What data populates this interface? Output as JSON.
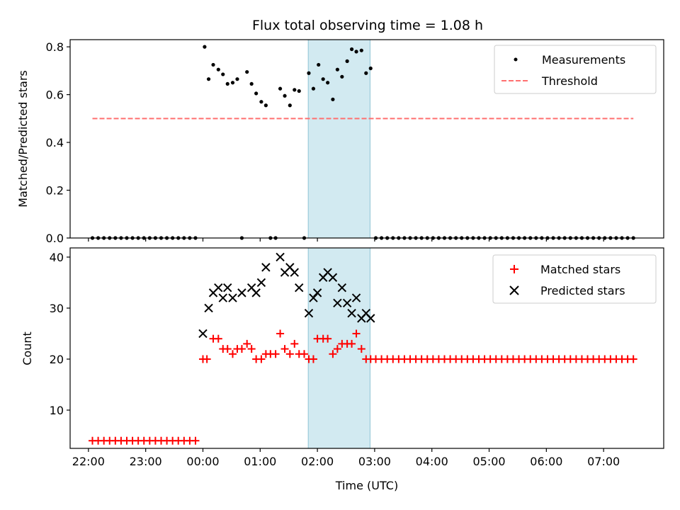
{
  "chart_data": {
    "title": "Flux total observing time = 1.08 h",
    "xlabel": "Time (UTC)",
    "x_unit": "hours since 22:00 UTC",
    "x_range": [
      -0.32,
      10.05
    ],
    "x_ticks": [
      {
        "label": "22:00",
        "value": 0
      },
      {
        "label": "23:00",
        "value": 1
      },
      {
        "label": "00:00",
        "value": 2
      },
      {
        "label": "01:00",
        "value": 3
      },
      {
        "label": "02:00",
        "value": 4
      },
      {
        "label": "03:00",
        "value": 5
      },
      {
        "label": "04:00",
        "value": 6
      },
      {
        "label": "05:00",
        "value": 7
      },
      {
        "label": "06:00",
        "value": 8
      },
      {
        "label": "07:00",
        "value": 9
      }
    ],
    "highlight": {
      "x0": 3.84,
      "x1": 4.92,
      "color": "#add8e6"
    },
    "panels": [
      {
        "type": "scatter",
        "ylabel": "Matched/Predicted stars",
        "ylim": [
          0,
          0.83
        ],
        "y_ticks": [
          0.0,
          0.2,
          0.4,
          0.6,
          0.8
        ],
        "legend_position": "upper right",
        "series": [
          {
            "name": "Measurements",
            "marker": "dot",
            "color": "#000000",
            "x": [
              0.07,
              0.17,
              0.27,
              0.37,
              0.47,
              0.57,
              0.67,
              0.77,
              0.87,
              0.97,
              1.07,
              1.17,
              1.27,
              1.37,
              1.47,
              1.57,
              1.67,
              1.77,
              1.87,
              2.03,
              2.1,
              2.18,
              2.27,
              2.35,
              2.43,
              2.52,
              2.6,
              2.68,
              2.77,
              2.85,
              2.93,
              3.02,
              3.1,
              3.18,
              3.27,
              3.35,
              3.43,
              3.52,
              3.6,
              3.68,
              3.77,
              3.85,
              3.93,
              4.02,
              4.1,
              4.18,
              4.27,
              4.35,
              4.43,
              4.52,
              4.6,
              4.68,
              4.77,
              4.85,
              4.93,
              5.02,
              5.12,
              5.22,
              5.32,
              5.42,
              5.52,
              5.62,
              5.72,
              5.82,
              5.92,
              6.02,
              6.12,
              6.22,
              6.32,
              6.42,
              6.52,
              6.62,
              6.72,
              6.82,
              6.92,
              7.02,
              7.12,
              7.22,
              7.32,
              7.42,
              7.52,
              7.62,
              7.72,
              7.82,
              7.92,
              8.02,
              8.12,
              8.22,
              8.32,
              8.42,
              8.52,
              8.62,
              8.72,
              8.82,
              8.92,
              9.02,
              9.12,
              9.22,
              9.32,
              9.42,
              9.52
            ],
            "y": [
              0,
              0,
              0,
              0,
              0,
              0,
              0,
              0,
              0,
              0,
              0,
              0,
              0,
              0,
              0,
              0,
              0,
              0,
              0,
              0.8,
              0.665,
              0.725,
              0.705,
              0.685,
              0.645,
              0.65,
              0.665,
              0,
              0.695,
              0.645,
              0.605,
              0.57,
              0.555,
              0,
              0,
              0.625,
              0.595,
              0.555,
              0.62,
              0.615,
              0,
              0.69,
              0.625,
              0.725,
              0.665,
              0.65,
              0.58,
              0.705,
              0.675,
              0.74,
              0.79,
              0.78,
              0.785,
              0.69,
              0.71,
              0,
              0,
              0,
              0,
              0,
              0,
              0,
              0,
              0,
              0,
              0,
              0,
              0,
              0,
              0,
              0,
              0,
              0,
              0,
              0,
              0,
              0,
              0,
              0,
              0,
              0,
              0,
              0,
              0,
              0,
              0,
              0,
              0,
              0,
              0,
              0,
              0,
              0,
              0,
              0,
              0,
              0,
              0,
              0,
              0,
              0
            ]
          },
          {
            "name": "Threshold",
            "marker": "dashed-line",
            "color": "#ff7070",
            "x": [
              0.07,
              9.52
            ],
            "y": [
              0.5,
              0.5
            ]
          }
        ]
      },
      {
        "type": "scatter",
        "ylabel": "Count",
        "ylim": [
          2.5,
          41.8
        ],
        "y_ticks": [
          10,
          20,
          30,
          40
        ],
        "legend_position": "upper right",
        "series": [
          {
            "name": "Matched stars",
            "marker": "plus",
            "color": "#ff0000",
            "x": [
              0.07,
              0.17,
              0.27,
              0.37,
              0.47,
              0.57,
              0.67,
              0.77,
              0.87,
              0.97,
              1.07,
              1.17,
              1.27,
              1.37,
              1.47,
              1.57,
              1.67,
              1.77,
              1.87,
              2.0,
              2.07,
              2.18,
              2.27,
              2.35,
              2.43,
              2.52,
              2.6,
              2.68,
              2.77,
              2.85,
              2.93,
              3.02,
              3.1,
              3.18,
              3.27,
              3.35,
              3.43,
              3.52,
              3.6,
              3.68,
              3.77,
              3.85,
              3.93,
              4.0,
              4.1,
              4.18,
              4.27,
              4.35,
              4.43,
              4.52,
              4.6,
              4.68,
              4.77,
              4.85,
              4.93,
              5.02,
              5.12,
              5.22,
              5.32,
              5.42,
              5.52,
              5.62,
              5.72,
              5.82,
              5.92,
              6.02,
              6.12,
              6.22,
              6.32,
              6.42,
              6.52,
              6.62,
              6.72,
              6.82,
              6.92,
              7.02,
              7.12,
              7.22,
              7.32,
              7.42,
              7.52,
              7.62,
              7.72,
              7.82,
              7.92,
              8.02,
              8.12,
              8.22,
              8.32,
              8.42,
              8.52,
              8.62,
              8.72,
              8.82,
              8.92,
              9.02,
              9.12,
              9.22,
              9.32,
              9.42,
              9.52
            ],
            "y": [
              4,
              4,
              4,
              4,
              4,
              4,
              4,
              4,
              4,
              4,
              4,
              4,
              4,
              4,
              4,
              4,
              4,
              4,
              4,
              20,
              20,
              24,
              24,
              22,
              22,
              21,
              22,
              22,
              23,
              22,
              20,
              20,
              21,
              21,
              21,
              25,
              22,
              21,
              23,
              21,
              21,
              20,
              20,
              24,
              24,
              24,
              21,
              22,
              23,
              23,
              23,
              25,
              22,
              20,
              20,
              20,
              20,
              20,
              20,
              20,
              20,
              20,
              20,
              20,
              20,
              20,
              20,
              20,
              20,
              20,
              20,
              20,
              20,
              20,
              20,
              20,
              20,
              20,
              20,
              20,
              20,
              20,
              20,
              20,
              20,
              20,
              20,
              20,
              20,
              20,
              20,
              20,
              20,
              20,
              20,
              20,
              20,
              20,
              20,
              20,
              20
            ]
          },
          {
            "name": "Predicted stars",
            "marker": "x",
            "color": "#000000",
            "x": [
              2.0,
              2.1,
              2.18,
              2.27,
              2.35,
              2.43,
              2.52,
              2.68,
              2.85,
              2.93,
              3.02,
              3.1,
              3.35,
              3.43,
              3.52,
              3.6,
              3.68,
              3.85,
              3.93,
              4.0,
              4.1,
              4.18,
              4.27,
              4.35,
              4.43,
              4.52,
              4.6,
              4.68,
              4.77,
              4.85,
              4.93
            ],
            "y": [
              25,
              30,
              33,
              34,
              32,
              34,
              32,
              33,
              34,
              33,
              35,
              38,
              40,
              37,
              38,
              37,
              34,
              29,
              32,
              33,
              36,
              37,
              36,
              31,
              34,
              31,
              29,
              32,
              28,
              29,
              28
            ]
          }
        ]
      }
    ]
  }
}
